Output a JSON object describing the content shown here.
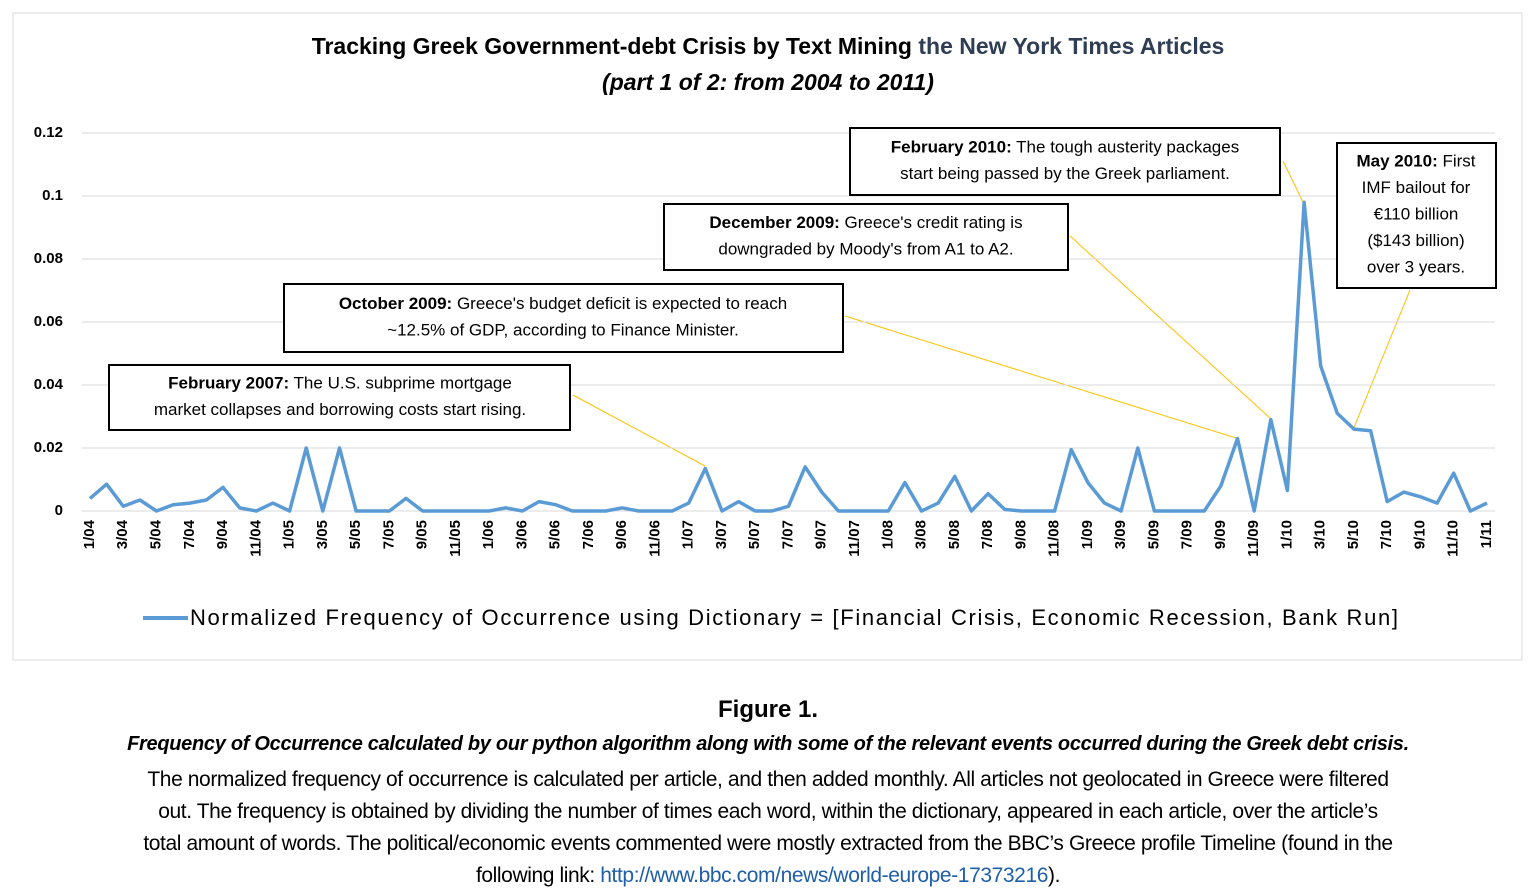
{
  "chart_data": {
    "type": "line",
    "title": "Tracking Greek Government-debt Crisis by Text Mining",
    "title_highlight": "the New York Times Articles",
    "subtitle": "(part 1 of 2: from 2004 to 2011)",
    "categories": [
      "1/04",
      null,
      "3/04",
      null,
      "5/04",
      null,
      "7/04",
      null,
      "9/04",
      null,
      "11/04",
      null,
      "1/05",
      null,
      "3/05",
      null,
      "5/05",
      null,
      "7/05",
      null,
      "9/05",
      null,
      "11/05",
      null,
      "1/06",
      null,
      "3/06",
      null,
      "5/06",
      null,
      "7/06",
      null,
      "9/06",
      null,
      "11/06",
      null,
      "1/07",
      null,
      "3/07",
      null,
      "5/07",
      null,
      "7/07",
      null,
      "9/07",
      null,
      "11/07",
      null,
      "1/08",
      null,
      "3/08",
      null,
      "5/08",
      null,
      "7/08",
      null,
      "9/08",
      null,
      "11/08",
      null,
      "1/09",
      null,
      "3/09",
      null,
      "5/09",
      null,
      "7/09",
      null,
      "9/09",
      null,
      "11/09",
      null,
      "1/10",
      null,
      "3/10",
      null,
      "5/10",
      null,
      "7/10",
      null,
      "9/10",
      null,
      "11/10",
      null,
      "1/11"
    ],
    "series": [
      {
        "name": "Normalized Frequency of Occurrence using Dictionary = [Financial Crisis, Economic Recession, Bank Run]",
        "color": "#5b9bd5",
        "values": [
          0.004,
          0.0085,
          0.0015,
          0.0035,
          0,
          0.002,
          0.0025,
          0.0035,
          0.0075,
          0.001,
          0,
          0.0025,
          0,
          0.02,
          0,
          0.02,
          0,
          0,
          0,
          0.004,
          0,
          0,
          0,
          0,
          0,
          0.001,
          0,
          0.003,
          0.002,
          0,
          0,
          0,
          0.001,
          0,
          0,
          0,
          0.0025,
          0.0135,
          0,
          0.003,
          0,
          0,
          0.0015,
          0.014,
          0.006,
          0,
          0,
          0,
          0,
          0.009,
          0,
          0.0025,
          0.011,
          0,
          0.0055,
          0.0005,
          0,
          0,
          0,
          0.0195,
          0.009,
          0.0025,
          0,
          0.02,
          0,
          0,
          0,
          0,
          0.008,
          0.023,
          0,
          0.029,
          0.0065,
          0.098,
          0.046,
          0.031,
          0.026,
          0.0255,
          0.003,
          0.006,
          0.0045,
          0.0025,
          0.012,
          0,
          0.0025
        ]
      }
    ],
    "ylim": [
      0,
      0.12
    ],
    "yticks": [
      0,
      0.02,
      0.04,
      0.06,
      0.08,
      0.1,
      0.12
    ],
    "grid": true,
    "legend": "bottom",
    "annotations": [
      {
        "label": "February 2007:",
        "text": [
          "The U.S. subprime mortgage",
          "market collapses and borrowing costs start rising."
        ]
      },
      {
        "label": "October 2009:",
        "text": [
          "Greece's budget deficit is expected to reach",
          "~12.5% of GDP, according to Finance Minister."
        ]
      },
      {
        "label": "December 2009:",
        "text": [
          "Greece's credit rating is",
          "downgraded by Moody's from A1 to A2."
        ]
      },
      {
        "label": "February 2010:",
        "text": [
          "The tough austerity packages",
          "start being passed by the Greek parliament."
        ]
      },
      {
        "label": "May 2010:",
        "text": [
          "First",
          "IMF bailout for",
          "€110 billion",
          "($143 billion)",
          "over 3 years."
        ]
      }
    ]
  },
  "caption": {
    "figure": "Figure 1.",
    "headline": "Frequency of Occurrence calculated by our python algorithm along with some of the relevant events occurred during the Greek debt crisis.",
    "lines": [
      "The normalized frequency of occurrence is calculated per article, and then added monthly. All articles not geolocated in Greece were filtered",
      "out. The frequency is obtained by dividing the number of times each word, within the dictionary, appeared in each article, over the article’s",
      "total amount of words. The political/economic events commented were mostly extracted from the BBC’s Greece profile Timeline (found in the",
      "following link: "
    ],
    "link": "http://www.bbc.com/news/world-europe-17373216",
    "end": ")."
  }
}
